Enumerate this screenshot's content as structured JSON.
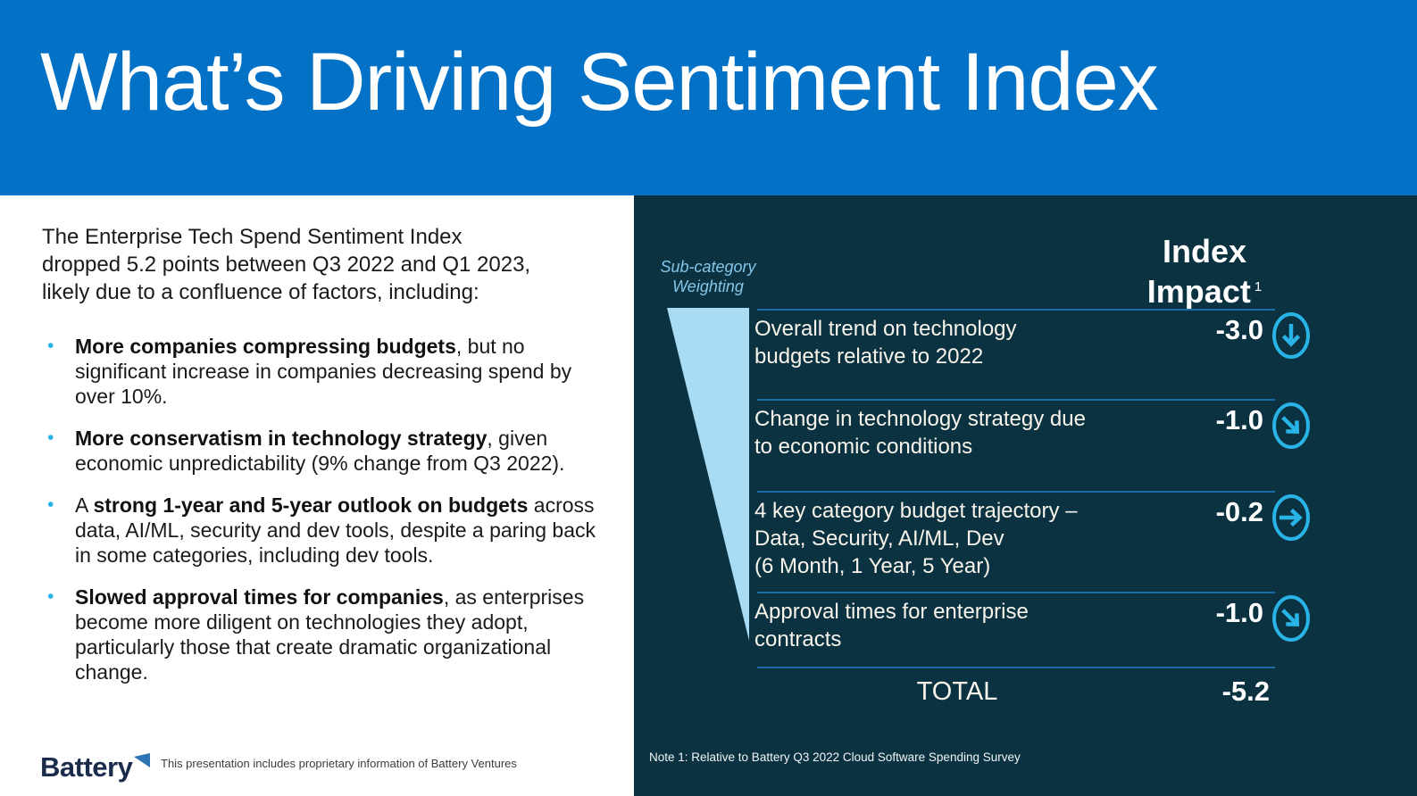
{
  "header": {
    "title": "What’s Driving Sentiment Index"
  },
  "left": {
    "intro": "The Enterprise Tech Spend Sentiment Index\ndropped 5.2 points between Q3 2022 and Q1 2023,\nlikely due to a confluence of factors, including:",
    "bullets": [
      {
        "segments": [
          {
            "text": "More companies compressing budgets",
            "bold": true
          },
          {
            "text": ", but no significant increase in companies decreasing spend by over 10%.",
            "bold": false
          }
        ]
      },
      {
        "segments": [
          {
            "text": "More conservatism in technology strategy",
            "bold": true
          },
          {
            "text": ", given economic unpredictability (9% change from Q3 2022).",
            "bold": false
          }
        ]
      },
      {
        "segments": [
          {
            "text": "A ",
            "bold": false
          },
          {
            "text": "strong 1-year and 5-year outlook on budgets",
            "bold": true
          },
          {
            "text": " across data, AI/ML, security and dev tools, despite a paring back in some categories, including dev tools.",
            "bold": false
          }
        ]
      },
      {
        "segments": [
          {
            "text": "Slowed approval times for companies",
            "bold": true
          },
          {
            "text": ", as enterprises become more diligent on technologies they adopt, particularly those that create dramatic organizational change.",
            "bold": false
          }
        ]
      }
    ],
    "footer": {
      "logo_text": "Battery",
      "disclaimer": "This presentation includes proprietary information of Battery Ventures"
    }
  },
  "panel": {
    "weighting_label": "Sub-category\nWeighting",
    "impact_header": "Index\nImpact",
    "impact_superscript": "1",
    "rows": [
      {
        "label": "Overall trend on technology\nbudgets relative to 2022",
        "value": "-3.0",
        "icon": "circle-arrow-down"
      },
      {
        "label": "Change in technology strategy due\nto economic conditions",
        "value": "-1.0",
        "icon": "circle-arrow-down-right"
      },
      {
        "label": "4 key category budget trajectory –\nData, Security, AI/ML, Dev\n(6 Month, 1 Year, 5 Year)",
        "value": "-0.2",
        "icon": "circle-arrow-right"
      },
      {
        "label": "Approval times for enterprise\ncontracts",
        "value": "-1.0",
        "icon": "circle-arrow-down-right"
      }
    ],
    "total": {
      "label": "TOTAL",
      "value": "-5.2"
    },
    "note": "Note 1: Relative to Battery Q3 2022 Cloud Software Spending Survey"
  },
  "chart_data": {
    "type": "table",
    "title": "Index Impact by sub-category",
    "categories": [
      "Overall trend on technology budgets relative to 2022",
      "Change in technology strategy due to economic conditions",
      "4 key category budget trajectory – Data, Security, AI/ML, Dev (6 Month, 1 Year, 5 Year)",
      "Approval times for enterprise contracts"
    ],
    "values": [
      -3.0,
      -1.0,
      -0.2,
      -1.0
    ],
    "trend_icons": [
      "down",
      "down-right",
      "right",
      "down-right"
    ],
    "total": -5.2
  },
  "colors": {
    "header_blue": "#0271C6",
    "panel_dark": "#0B3241",
    "accent_cyan": "#29B4E8",
    "wedge_light_blue": "#A8DCF5",
    "separator_blue": "#1A6BA8",
    "logo_navy": "#1B2B4B",
    "logo_flag_blue": "#2E74B5"
  }
}
